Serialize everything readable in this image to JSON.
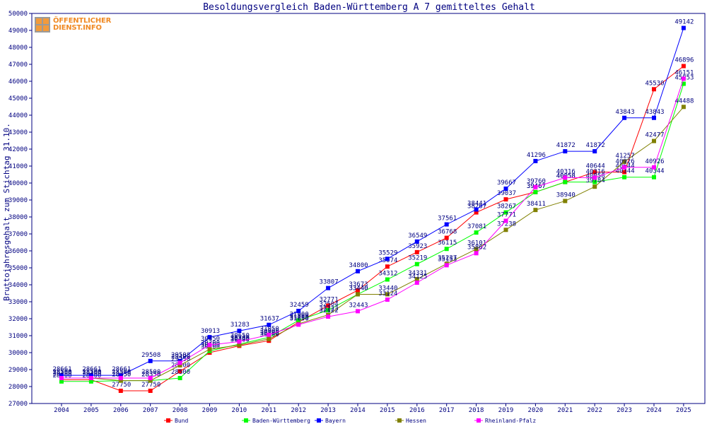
{
  "chart_data": {
    "type": "line",
    "title": "Besoldungsvergleich Baden-Württemberg A 7 gemitteltes Gehalt",
    "ylabel": "Bruttojahresgehalt zum Stichtag 31.10.",
    "xlabel": "",
    "categories": [
      "2004",
      "2005",
      "2006",
      "2007",
      "2008",
      "2009",
      "2010",
      "2011",
      "2012",
      "2013",
      "2014",
      "2015",
      "2016",
      "2017",
      "2018",
      "2019",
      "2020",
      "2021",
      "2022",
      "2023",
      "2024",
      "2025"
    ],
    "ylim": [
      27000,
      50000
    ],
    "yticks": [
      27000,
      28000,
      29000,
      30000,
      31000,
      32000,
      33000,
      34000,
      35000,
      36000,
      37000,
      38000,
      39000,
      40000,
      41000,
      42000,
      43000,
      44000,
      45000,
      46000,
      47000,
      48000,
      49000,
      50000
    ],
    "grid": false,
    "legend_position": "bottom",
    "series": [
      {
        "name": "Bund",
        "color": "#ff0000",
        "values": [
          28400,
          28400,
          27750,
          27750,
          28900,
          30000,
          30400,
          30700,
          31800,
          32771,
          33673,
          35074,
          35923,
          36768,
          38267,
          39037,
          39467,
          40058,
          40644,
          40644,
          45530,
          46896
        ]
      },
      {
        "name": "Baden-Württemberg",
        "color": "#00ff00",
        "values": [
          28300,
          28300,
          28350,
          28350,
          28500,
          30100,
          30500,
          30900,
          31900,
          32504,
          33440,
          34312,
          35219,
          36115,
          37081,
          38267,
          39467,
          40058,
          40058,
          40344,
          40344,
          45853
        ]
      },
      {
        "name": "Bayern",
        "color": "#0000ff",
        "values": [
          28661,
          28661,
          28661,
          29508,
          29508,
          30913,
          31283,
          31637,
          32459,
          33807,
          34800,
          35529,
          36549,
          37561,
          38441,
          39667,
          41296,
          41872,
          41872,
          43843,
          43843,
          49142
        ]
      },
      {
        "name": "Hessen",
        "color": "#808000",
        "values": [
          28500,
          28500,
          28350,
          28350,
          29250,
          30200,
          30450,
          30800,
          31700,
          32223,
          33440,
          33440,
          34331,
          35237,
          36101,
          37238,
          38411,
          38940,
          39784,
          41257,
          42477,
          44488
        ]
      },
      {
        "name": "Rheinland-Pfalz",
        "color": "#ff00ff",
        "values": [
          28500,
          28500,
          28500,
          28500,
          29400,
          30450,
          30650,
          31050,
          31650,
          32122,
          32443,
          33124,
          34125,
          35153,
          35862,
          37771,
          39760,
          40316,
          40316,
          40926,
          40926,
          46151
        ]
      }
    ]
  },
  "logo": {
    "line1": "ÖFFENTLICHER",
    "line2": "DIENST.INFO"
  }
}
